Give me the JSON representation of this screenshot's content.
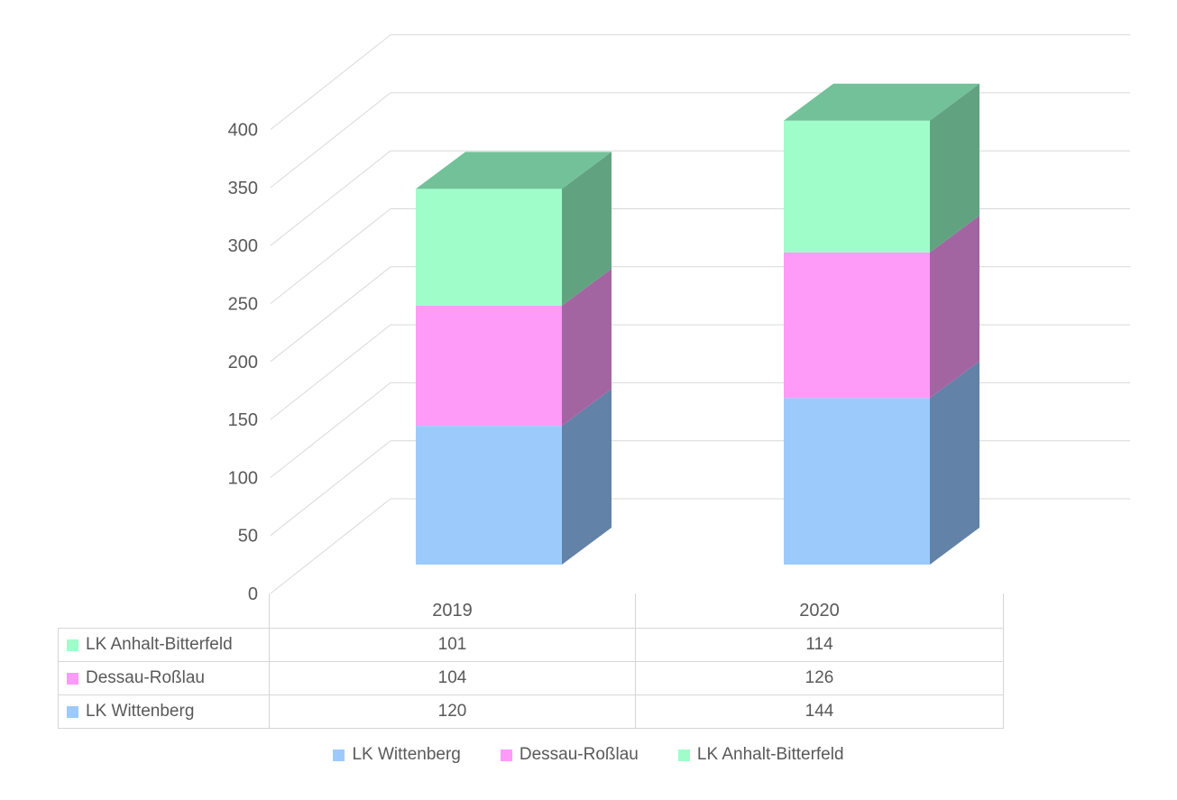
{
  "chart_data": {
    "type": "bar",
    "subtype": "stacked-column-3d",
    "title": "",
    "categories": [
      "2019",
      "2020"
    ],
    "series": [
      {
        "name": "LK Wittenberg",
        "values": [
          120,
          144
        ],
        "color": "#9CCBFB",
        "side_color": "#6282A7",
        "top_color": "#7FA8D4"
      },
      {
        "name": "Dessau-Roßlau",
        "values": [
          104,
          126
        ],
        "color": "#FE9AF8",
        "side_color": "#A365A2",
        "top_color": "#C77EC4"
      },
      {
        "name": "LK Anhalt-Bitterfeld",
        "values": [
          101,
          114
        ],
        "color": "#9FFDCA",
        "side_color": "#61A380",
        "top_color": "#73C199"
      }
    ],
    "totals": [
      325,
      384
    ],
    "xlabel": "",
    "ylabel": "",
    "ylim": [
      0,
      400
    ],
    "ytick_step": 50,
    "yticks": [
      "0",
      "50",
      "100",
      "150",
      "200",
      "250",
      "300",
      "350",
      "400"
    ],
    "grid": true,
    "legend_position": "bottom",
    "data_table_shown": true
  },
  "table": {
    "col_headers": [
      "2019",
      "2020"
    ],
    "rows": [
      {
        "name": "LK Anhalt-Bitterfeld",
        "swatch_color": "#9FFDCA",
        "values": [
          "101",
          "114"
        ]
      },
      {
        "name": "Dessau-Roßlau",
        "swatch_color": "#FE9AF8",
        "values": [
          "104",
          "126"
        ]
      },
      {
        "name": "LK Wittenberg",
        "swatch_color": "#9CCBFB",
        "values": [
          "120",
          "144"
        ]
      }
    ]
  },
  "legend": {
    "items": [
      {
        "label": "LK Wittenberg",
        "color": "#9CCBFB"
      },
      {
        "label": "Dessau-Roßlau",
        "color": "#FE9AF8"
      },
      {
        "label": "LK Anhalt-Bitterfeld",
        "color": "#9FFDCA"
      }
    ]
  },
  "colors": {
    "background": "#FFFFFF",
    "grid": "#D9D9D9",
    "table_border": "#D6D6D6",
    "text": "#595959"
  }
}
